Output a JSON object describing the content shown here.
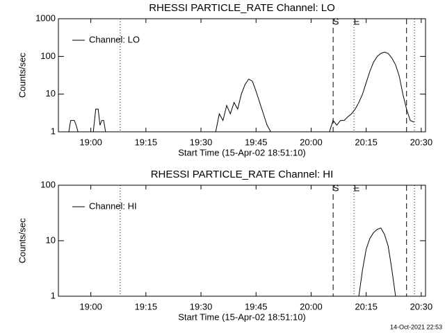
{
  "chart_data": [
    {
      "type": "line",
      "title": "RHESSI PARTICLE_RATE Channel: LO",
      "xlabel": "Start Time (15-Apr-02 18:51:10)",
      "ylabel": "Counts/sec",
      "log_y": true,
      "legend": "upper left",
      "xlim": [
        "18:51:10",
        "20:31:10"
      ],
      "xticks": [
        "19:00",
        "19:15",
        "19:30",
        "19:45",
        "20:00",
        "20:15",
        "20:30"
      ],
      "ylim": [
        1,
        1000
      ],
      "yticks": [
        1,
        10,
        100,
        1000
      ],
      "vlines": [
        {
          "x": "19:08",
          "style": "dotted"
        },
        {
          "x": "20:06",
          "style": "dashed",
          "label": "S"
        },
        {
          "x": "20:11:40",
          "style": "dotted",
          "label": "E"
        },
        {
          "x": "20:26",
          "style": "dashed"
        },
        {
          "x": "20:28:10",
          "style": "dotted"
        }
      ],
      "series": [
        {
          "name": "Channel: LO",
          "color": "#000000",
          "x": [
            "18:54",
            "18:54:30",
            "18:55:30",
            "18:56",
            "18:56:30",
            null,
            "19:00:40",
            "19:01:20",
            "19:02",
            "19:02:30",
            "19:03",
            "19:03:30",
            "19:04",
            null,
            "19:34",
            "19:35",
            "19:36",
            "19:37",
            "19:38",
            "19:39",
            "19:40",
            "19:41",
            "19:42",
            "19:43",
            "19:44",
            "19:45",
            "19:46",
            "19:47",
            "19:48",
            "19:49",
            null,
            "20:05",
            "20:06",
            "20:07",
            "20:08",
            "20:09",
            "20:10",
            "20:11",
            "20:12",
            "20:13",
            "20:14",
            "20:15",
            "20:16",
            "20:17",
            "20:18",
            "20:19",
            "20:20",
            "20:21",
            "20:22",
            "20:23",
            "20:24",
            "20:25",
            "20:26",
            "20:27",
            "20:28"
          ],
          "values": [
            1,
            2,
            2,
            1.5,
            1,
            null,
            1,
            4,
            4,
            1.5,
            2,
            2,
            1,
            null,
            1,
            3,
            2,
            5,
            3,
            6,
            4,
            10,
            18,
            25,
            22,
            12,
            6,
            3,
            1.5,
            1,
            null,
            1,
            2,
            1.5,
            2,
            2,
            2.5,
            3,
            4,
            6,
            10,
            20,
            40,
            70,
            100,
            120,
            130,
            120,
            90,
            60,
            30,
            10,
            4,
            2,
            1.8
          ]
        }
      ]
    },
    {
      "type": "line",
      "title": "RHESSI PARTICLE_RATE Channel: HI",
      "xlabel": "Start Time (15-Apr-02 18:51:10)",
      "ylabel": "Counts/sec",
      "log_y": true,
      "legend": "upper left",
      "xlim": [
        "18:51:10",
        "20:31:10"
      ],
      "xticks": [
        "19:00",
        "19:15",
        "19:30",
        "19:45",
        "20:00",
        "20:15",
        "20:30"
      ],
      "ylim": [
        1,
        100
      ],
      "yticks": [
        1,
        10,
        100
      ],
      "vlines": [
        {
          "x": "19:08",
          "style": "dotted"
        },
        {
          "x": "20:06",
          "style": "dashed",
          "label": "S"
        },
        {
          "x": "20:11:40",
          "style": "dotted",
          "label": "E"
        },
        {
          "x": "20:26",
          "style": "dashed"
        },
        {
          "x": "20:28:10",
          "style": "dotted"
        }
      ],
      "series": [
        {
          "name": "Channel: HI",
          "color": "#000000",
          "x": [
            "20:13",
            "20:14",
            "20:15",
            "20:16",
            "20:17",
            "20:18",
            "20:19",
            "20:20",
            "20:21",
            "20:22",
            "20:23"
          ],
          "values": [
            1,
            3,
            7,
            11,
            14,
            16,
            17,
            13,
            8,
            3,
            1
          ]
        }
      ]
    }
  ],
  "timestamp": "14-Oct-2021 22:53"
}
